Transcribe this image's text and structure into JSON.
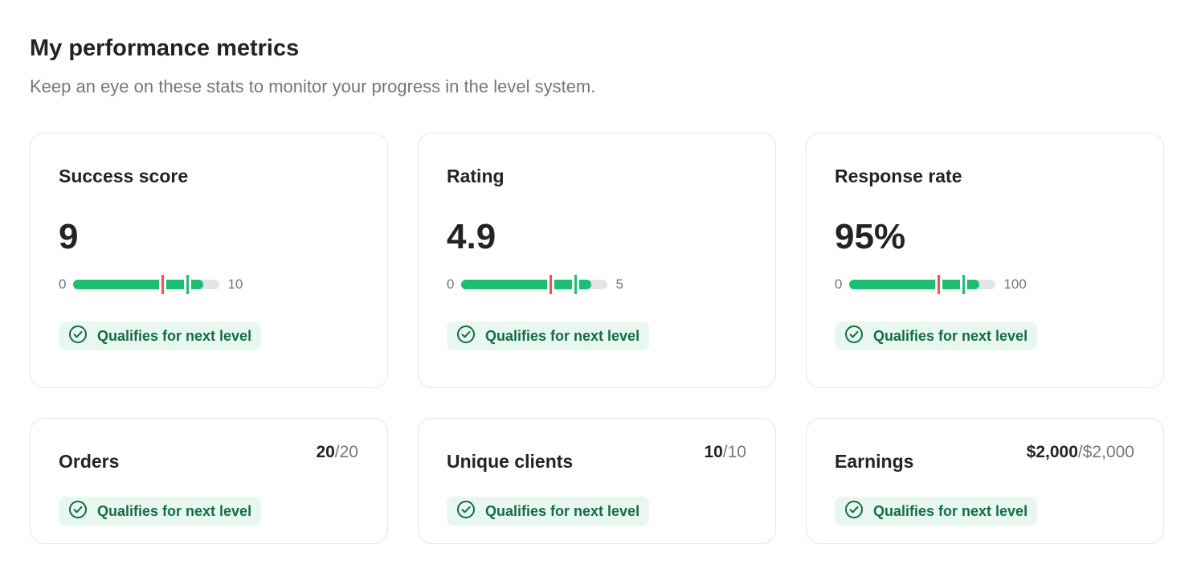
{
  "header": {
    "title": "My performance metrics",
    "subtitle": "Keep an eye on these stats to monitor your progress in the level system."
  },
  "colors": {
    "fill": "#1dbf73",
    "current_marker": "#ff4d4f",
    "next_marker": "#1dbf73",
    "badge_bg": "#e8f8f0",
    "badge_text": "#146c43"
  },
  "metrics": [
    {
      "title": "Success score",
      "value": "9",
      "min": "0",
      "max": "10",
      "fill_fraction": 0.89,
      "red_marker": 0.6,
      "green_marker": 0.77,
      "badge": "Qualifies for next level",
      "icon": "check-circle-icon"
    },
    {
      "title": "Rating",
      "value": "4.9",
      "min": "0",
      "max": "5",
      "fill_fraction": 0.89,
      "red_marker": 0.6,
      "green_marker": 0.77,
      "badge": "Qualifies for next level",
      "icon": "check-circle-icon"
    },
    {
      "title": "Response rate",
      "value": "95%",
      "min": "0",
      "max": "100",
      "fill_fraction": 0.89,
      "red_marker": 0.6,
      "green_marker": 0.77,
      "badge": "Qualifies for next level",
      "icon": "check-circle-icon"
    }
  ],
  "counts": [
    {
      "title": "Orders",
      "current": "20",
      "target": "/20",
      "badge": "Qualifies for next level"
    },
    {
      "title": "Unique clients",
      "current": "10",
      "target": "/10",
      "badge": "Qualifies for next level"
    },
    {
      "title": "Earnings",
      "current": "$2,000",
      "target": "/$2,000",
      "badge": "Qualifies for next level"
    }
  ]
}
